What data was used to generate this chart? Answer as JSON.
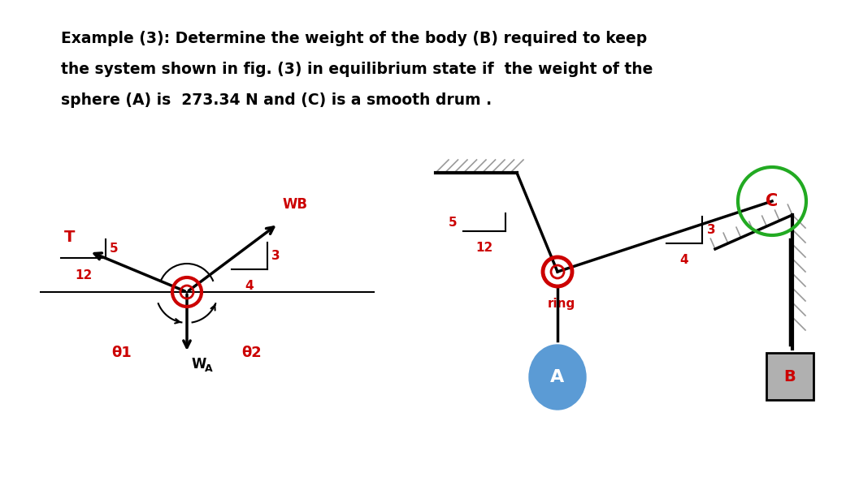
{
  "title_line1": "Example (3): Determine the weight of the body (B) required to keep",
  "title_line2": "the system shown in fig. (3) in equilibrium state if  the weight of the",
  "title_line3": "sphere (A) is  273.34 N and (C) is a smooth drum .",
  "title_fontsize": 13.5,
  "bg_color": "#ffffff",
  "red_color": "#cc0000",
  "black_color": "#000000",
  "green_color": "#22aa22",
  "blue_color": "#5b9bd5",
  "gray_color": "#999999",
  "gray_light": "#b0b0b0"
}
